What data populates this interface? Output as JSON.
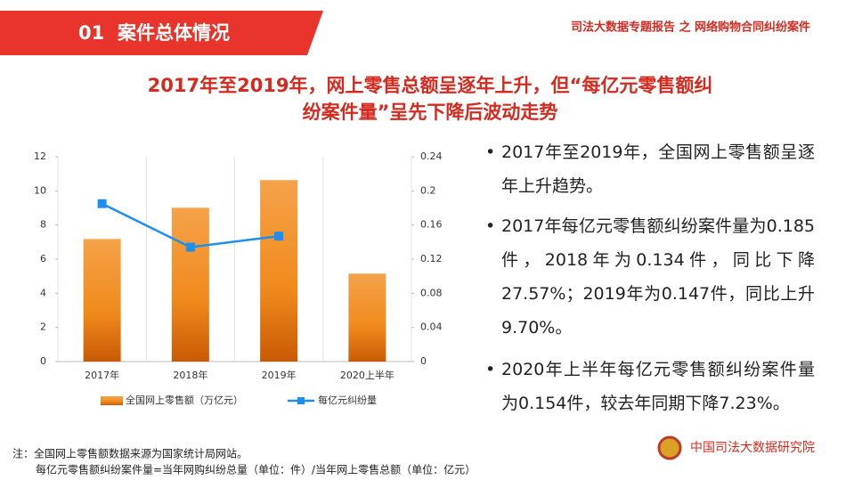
{
  "header": {
    "number": "01",
    "section": "案件总体情况",
    "report": "司法大数据专题报告 之 网络购物合同纠纷案件"
  },
  "headline": [
    "2017年至2019年，网上零售总额呈逐年上升，但“每亿元零售额纠",
    "纷案件量”呈先下降后波动走势"
  ],
  "chart_data": {
    "type": "bar",
    "categories": [
      "2017年",
      "2018年",
      "2019年",
      "2020上半年"
    ],
    "series": [
      {
        "name": "全国网上零售额（万亿元）",
        "color": "#f08a1c",
        "values": [
          7.18,
          9.01,
          10.63,
          5.15
        ]
      },
      {
        "name": "每亿元纠纷量",
        "color": "#1e8fef",
        "axis": "y2",
        "values": [
          0.185,
          0.134,
          0.147,
          null
        ]
      }
    ],
    "ylim": [
      0,
      12
    ],
    "yticks": [
      0,
      2,
      4,
      6,
      8,
      10,
      12
    ],
    "y2lim": [
      0,
      0.24
    ],
    "y2ticks": [
      0,
      0.04,
      0.08,
      0.12,
      0.16,
      0.2,
      0.24
    ],
    "grid": false,
    "legend": "bottom"
  },
  "bullets": [
    "2017年至2019年，全国网上零售额呈逐年上升趋势。",
    "2017年每亿元零售额纠纷案件量为0.185件，2018年为0.134件，同比下降27.57%；2019年为0.147件，同比上升9.70%。",
    "2020年上半年每亿元零售额纠纷案件量为0.154件，较去年同期下降7.23%。"
  ],
  "notes": [
    "注：全国网上零售额数据来源为国家统计局网站。",
    "每亿元零售额纠纷案件量=当年网购纠纷总量（单位：件）/当年网上零售总额（单位：亿元）"
  ],
  "logo": "中国司法大数据研究院"
}
